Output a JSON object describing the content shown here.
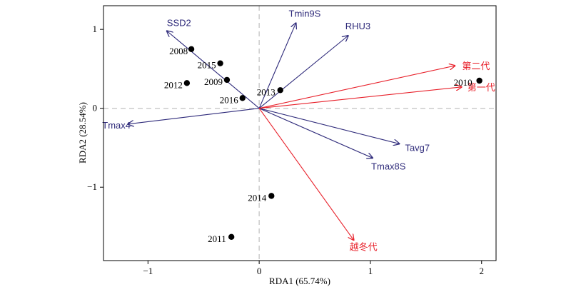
{
  "chart_data": {
    "type": "scatter",
    "subtype": "rda-biplot",
    "xlabel": "RDA1 (65.74%)",
    "ylabel": "RDA2 (28.54%)",
    "xlim": [
      -1.4,
      2.13
    ],
    "ylim": [
      -1.93,
      1.3
    ],
    "xticks": [
      -1,
      0,
      1,
      2
    ],
    "yticks": [
      -1,
      0,
      1
    ],
    "zero_lines": "dashed",
    "grid": false,
    "points": [
      {
        "label": "2008",
        "x": -0.61,
        "y": 0.75
      },
      {
        "label": "2015",
        "x": -0.35,
        "y": 0.57
      },
      {
        "label": "2012",
        "x": -0.65,
        "y": 0.32
      },
      {
        "label": "2009",
        "x": -0.29,
        "y": 0.36
      },
      {
        "label": "2016",
        "x": -0.15,
        "y": 0.13
      },
      {
        "label": "2013",
        "x": 0.19,
        "y": 0.23
      },
      {
        "label": "2010",
        "x": 1.98,
        "y": 0.35
      },
      {
        "label": "2014",
        "x": 0.11,
        "y": -1.11
      },
      {
        "label": "2011",
        "x": -0.25,
        "y": -1.63
      }
    ],
    "env_vectors": [
      {
        "label": "SSD2",
        "x": -0.83,
        "y": 0.98
      },
      {
        "label": "Tmin9S",
        "x": 0.33,
        "y": 1.08
      },
      {
        "label": "RHU3",
        "x": 0.8,
        "y": 0.92
      },
      {
        "label": "Tmax4",
        "x": -1.18,
        "y": -0.2
      },
      {
        "label": "Tavg7",
        "x": 1.26,
        "y": -0.45
      },
      {
        "label": "Tmax8S",
        "x": 1.02,
        "y": -0.63
      }
    ],
    "group_vectors": [
      {
        "label": "第二代",
        "x": 1.76,
        "y": 0.54
      },
      {
        "label": "第一代",
        "x": 1.82,
        "y": 0.27
      },
      {
        "label": "越冬代",
        "x": 0.85,
        "y": -1.67
      }
    ],
    "colors": {
      "env_vectors": "#2e2a7a",
      "group_vectors": "#e8202a",
      "points": "#000000",
      "zero_lines": "#c8c8c8"
    }
  }
}
